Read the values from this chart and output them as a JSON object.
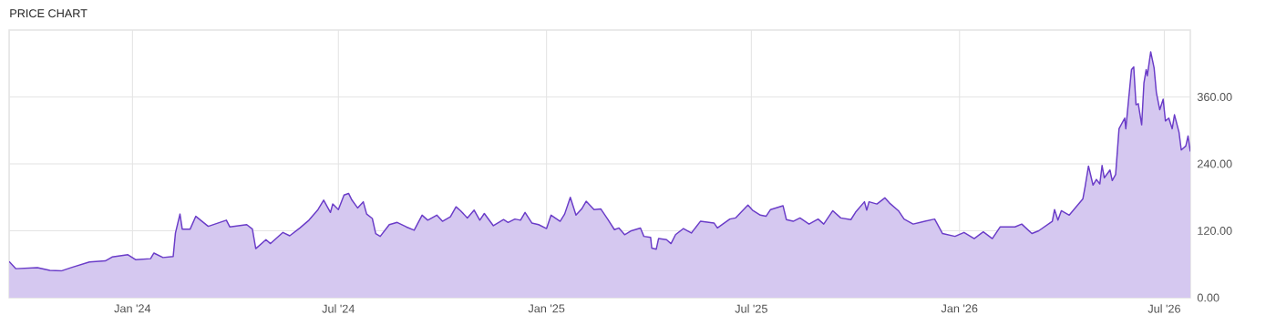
{
  "chart_data": {
    "type": "area",
    "title": "PRICE CHART",
    "x": [
      "2023-09-14",
      "2023-09-20",
      "2023-10-09",
      "2023-10-20",
      "2023-10-30",
      "2023-11-08",
      "2023-11-24",
      "2023-12-08",
      "2023-12-14",
      "2023-12-28",
      "2024-01-04",
      "2024-01-17",
      "2024-01-20",
      "2024-01-28",
      "2024-02-06",
      "2024-02-08",
      "2024-02-12",
      "2024-02-14",
      "2024-02-21",
      "2024-02-26",
      "2024-03-08",
      "2024-03-24",
      "2024-03-27",
      "2024-04-11",
      "2024-04-16",
      "2024-04-19",
      "2024-04-28",
      "2024-05-02",
      "2024-05-13",
      "2024-05-19",
      "2024-05-28",
      "2024-06-05",
      "2024-06-13",
      "2024-06-18",
      "2024-06-24",
      "2024-06-26",
      "2024-07-01",
      "2024-07-06",
      "2024-07-10",
      "2024-07-13",
      "2024-07-18",
      "2024-07-23",
      "2024-07-26",
      "2024-07-31",
      "2024-08-03",
      "2024-08-07",
      "2024-08-15",
      "2024-08-22",
      "2024-08-30",
      "2024-09-06",
      "2024-09-13",
      "2024-09-18",
      "2024-09-26",
      "2024-10-01",
      "2024-10-08",
      "2024-10-13",
      "2024-10-17",
      "2024-10-23",
      "2024-10-29",
      "2024-11-03",
      "2024-11-07",
      "2024-11-15",
      "2024-11-24",
      "2024-11-28",
      "2024-12-04",
      "2024-12-09",
      "2024-12-13",
      "2024-12-19",
      "2024-12-25",
      "2025-01-01",
      "2025-01-05",
      "2025-01-13",
      "2025-01-17",
      "2025-01-22",
      "2025-01-27",
      "2025-02-01",
      "2025-02-05",
      "2025-02-12",
      "2025-02-18",
      "2025-02-24",
      "2025-03-02",
      "2025-03-06",
      "2025-03-11",
      "2025-03-17",
      "2025-03-25",
      "2025-03-28",
      "2025-04-03",
      "2025-04-04",
      "2025-04-08",
      "2025-04-10",
      "2025-04-17",
      "2025-04-21",
      "2025-04-25",
      "2025-05-02",
      "2025-05-09",
      "2025-05-17",
      "2025-05-29",
      "2025-06-01",
      "2025-06-12",
      "2025-06-17",
      "2025-06-28",
      "2025-07-02",
      "2025-07-09",
      "2025-07-14",
      "2025-07-18",
      "2025-07-29",
      "2025-08-01",
      "2025-08-07",
      "2025-08-13",
      "2025-08-21",
      "2025-08-29",
      "2025-09-03",
      "2025-09-11",
      "2025-09-18",
      "2025-09-27",
      "2025-10-01",
      "2025-10-09",
      "2025-10-11",
      "2025-10-13",
      "2025-10-20",
      "2025-10-27",
      "2025-10-31",
      "2025-11-08",
      "2025-11-13",
      "2025-11-21",
      "2025-11-29",
      "2025-12-10",
      "2025-12-17",
      "2025-12-28",
      "2026-01-05",
      "2026-01-14",
      "2026-01-22",
      "2026-01-30",
      "2026-02-06",
      "2026-02-19",
      "2026-02-25",
      "2026-03-06",
      "2026-03-12",
      "2026-03-24",
      "2026-03-26",
      "2026-03-29",
      "2026-04-01",
      "2026-04-08",
      "2026-04-20",
      "2026-04-22",
      "2026-04-25",
      "2026-04-29",
      "2026-05-02",
      "2026-05-05",
      "2026-05-07",
      "2026-05-09",
      "2026-05-14",
      "2026-05-16",
      "2026-05-19",
      "2026-05-22",
      "2026-05-27",
      "2026-05-28",
      "2026-06-02",
      "2026-06-04",
      "2026-06-06",
      "2026-06-08",
      "2026-06-11",
      "2026-06-13",
      "2026-06-15",
      "2026-06-16",
      "2026-06-19",
      "2026-06-22",
      "2026-06-24",
      "2026-06-27",
      "2026-06-30",
      "2026-07-02",
      "2026-07-05",
      "2026-07-08",
      "2026-07-10",
      "2026-07-14",
      "2026-07-16",
      "2026-07-20",
      "2026-07-22",
      "2026-07-24"
    ],
    "series": [
      {
        "color": "#6a3cc8",
        "values": [
          65,
          52,
          54,
          49,
          48,
          54,
          64,
          66,
          73,
          77,
          68,
          70,
          80,
          72,
          74,
          116,
          150,
          123,
          123,
          146,
          128,
          139,
          127,
          131,
          123,
          88,
          104,
          97,
          117,
          111,
          125,
          139,
          158,
          175,
          153,
          168,
          158,
          184,
          187,
          175,
          161,
          172,
          150,
          142,
          115,
          110,
          131,
          135,
          127,
          121,
          148,
          139,
          148,
          137,
          145,
          163,
          156,
          143,
          157,
          139,
          151,
          129,
          140,
          135,
          141,
          139,
          153,
          134,
          131,
          124,
          148,
          137,
          150,
          180,
          148,
          159,
          173,
          158,
          159,
          141,
          122,
          125,
          113,
          120,
          125,
          110,
          108,
          89,
          87,
          106,
          104,
          97,
          113,
          124,
          116,
          137,
          134,
          125,
          141,
          143,
          166,
          157,
          148,
          146,
          158,
          165,
          140,
          137,
          143,
          132,
          141,
          132,
          156,
          143,
          140,
          153,
          172,
          157,
          172,
          168,
          179,
          170,
          156,
          141,
          132,
          136,
          141,
          115,
          110,
          117,
          106,
          118,
          106,
          127,
          127,
          132,
          115,
          120,
          137,
          158,
          139,
          156,
          148,
          177,
          199,
          236,
          202,
          212,
          204,
          237,
          215,
          229,
          210,
          221,
          303,
          322,
          303,
          409,
          414,
          346,
          348,
          310,
          385,
          409,
          398,
          441,
          412,
          368,
          337,
          356,
          317,
          322,
          303,
          328,
          297,
          265,
          272,
          290,
          262
        ]
      }
    ],
    "xlim": [
      "2023-09-14",
      "2026-07-24"
    ],
    "xticks": [
      {
        "value": "2024-01-01",
        "label": "Jan '24"
      },
      {
        "value": "2024-07-01",
        "label": "Jul '24"
      },
      {
        "value": "2025-01-01",
        "label": "Jan '25"
      },
      {
        "value": "2025-07-01",
        "label": "Jul '25"
      },
      {
        "value": "2026-01-01",
        "label": "Jan '26"
      },
      {
        "value": "2026-07-01",
        "label": "Jul '26"
      }
    ],
    "ylim": [
      0,
      480
    ],
    "yticks": [
      {
        "value": 0,
        "label": "0.00"
      },
      {
        "value": 120,
        "label": "120.00"
      },
      {
        "value": 240,
        "label": "240.00"
      },
      {
        "value": 360,
        "label": "360.00"
      }
    ],
    "grid": true
  }
}
